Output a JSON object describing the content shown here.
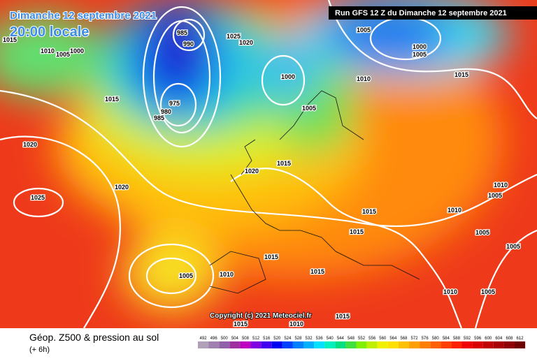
{
  "header": {
    "date": "Dimanche 12 septembre 2021",
    "local_time": "20:00 locale",
    "run": "Run GFS 12 Z du Dimanche 12 septembre 2021"
  },
  "copyright": "Copyright (c) 2021 Meteociel.fr",
  "footer": {
    "title": "Géop. Z500 & pression au sol",
    "lead": "(+ 6h)"
  },
  "isobar_labels": [
    "1015",
    "1010",
    "1005",
    "1000",
    "1015",
    "1020",
    "1025",
    "1020",
    "985",
    "990",
    "1025",
    "1020",
    "1000",
    "1005",
    "1010",
    "1005",
    "1000",
    "1005",
    "1015",
    "975",
    "980",
    "985",
    "1015",
    "1020",
    "1015",
    "1015",
    "1010",
    "1010",
    "1005",
    "1005",
    "1005",
    "1015",
    "1010",
    "1005",
    "1015",
    "1015",
    "1010",
    "1015",
    "1010",
    "1005"
  ],
  "scale": {
    "values": [
      492,
      496,
      500,
      504,
      508,
      512,
      516,
      520,
      524,
      528,
      532,
      536,
      540,
      544,
      548,
      552,
      556,
      560,
      564,
      568,
      572,
      576,
      580,
      584,
      588,
      592,
      596,
      600,
      604,
      608,
      612
    ],
    "colors": [
      "#b0a0b8",
      "#a080b0",
      "#9060a8",
      "#a030a0",
      "#c000c0",
      "#8000e0",
      "#4000f0",
      "#0000f0",
      "#0040ff",
      "#0080ff",
      "#00b0ff",
      "#00e0ff",
      "#00f0c0",
      "#00e080",
      "#40e040",
      "#80f000",
      "#c0f000",
      "#f0f000",
      "#ffe000",
      "#ffc000",
      "#ffa000",
      "#ff8000",
      "#ff6000",
      "#ff4000",
      "#ff2000",
      "#f00000",
      "#d80000",
      "#c00000",
      "#a80000",
      "#900000",
      "#700000"
    ]
  }
}
